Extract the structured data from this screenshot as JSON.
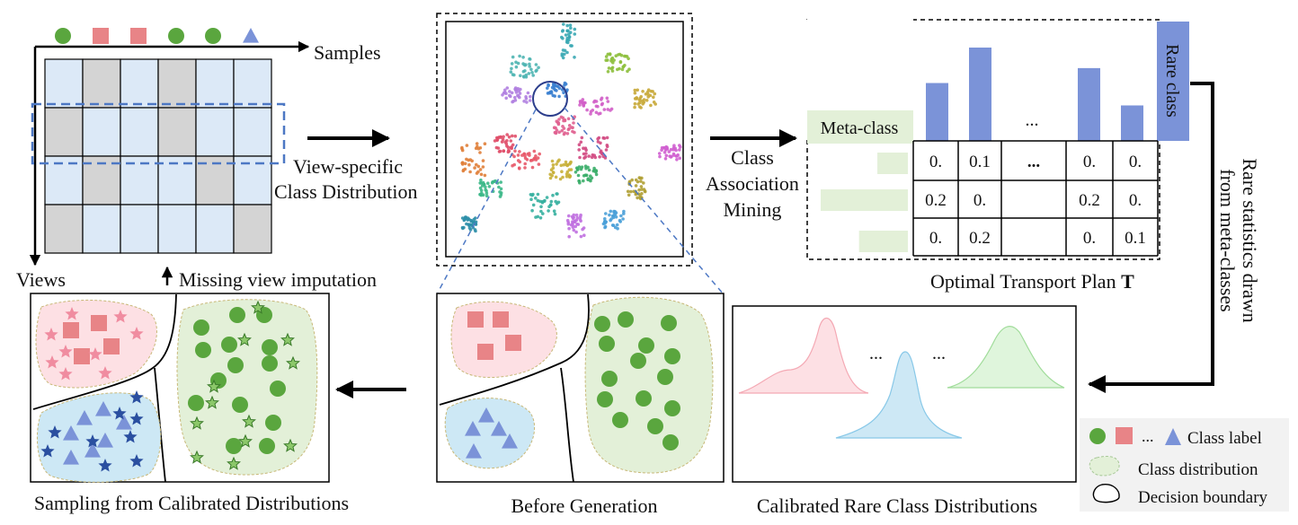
{
  "matrix_panel": {
    "samples_label": "Samples",
    "views_label": "Views",
    "missing_label": "Missing view imputation",
    "header_symbols": [
      "circle",
      "square",
      "square",
      "circle",
      "circle",
      "triangle"
    ],
    "grid": [
      [
        0,
        1,
        0,
        1,
        0,
        0
      ],
      [
        1,
        0,
        0,
        1,
        0,
        0
      ],
      [
        0,
        1,
        0,
        0,
        1,
        0
      ],
      [
        1,
        0,
        0,
        0,
        0,
        1
      ]
    ]
  },
  "view_specific": {
    "line1": "View-specific",
    "line2": "Class Distribution"
  },
  "class_association": {
    "line1": "Class",
    "line2": "Association",
    "line3": "Mining"
  },
  "transport": {
    "meta_class_label": "Meta-class",
    "rare_class_label": "Rare class",
    "ellipsis": "...",
    "bar_values": [
      0.62,
      1.0,
      0.0,
      0.78,
      0.38
    ],
    "meta_bar_values": [
      0.35,
      1.0,
      0.56
    ],
    "rows": [
      [
        "0.",
        "0.1",
        "...",
        "0.",
        "0."
      ],
      [
        "0.2",
        "0.",
        "",
        "0.2",
        "0."
      ],
      [
        "0.",
        "0.2",
        "",
        "0.",
        "0.1"
      ]
    ],
    "caption_prefix": "Optimal Transport Plan ",
    "caption_symbol": "T"
  },
  "rare_stats": {
    "line1": "Rare statistics drawn",
    "line2": "from meta-classes"
  },
  "calibrated": {
    "caption": "Calibrated Rare Class Distributions",
    "ellipsis1": "...",
    "ellipsis2": "..."
  },
  "before": {
    "caption": "Before Generation"
  },
  "sampling": {
    "caption": "Sampling from Calibrated Distributions"
  },
  "legend": {
    "class_label": "Class label",
    "ellipsis": "...",
    "class_distribution": "Class distribution",
    "decision_boundary": "Decision boundary"
  },
  "colors": {
    "green": "#5aa63e",
    "pink": "#e88487",
    "blue": "#7b93d8",
    "cell_blue": "#dce9f7",
    "cell_gray": "#d4d4d4",
    "dashed_blue": "#4d78c4",
    "pink_region": "#fde0e4",
    "green_region": "#e3f0d8",
    "blue_region": "#cde8f5"
  }
}
